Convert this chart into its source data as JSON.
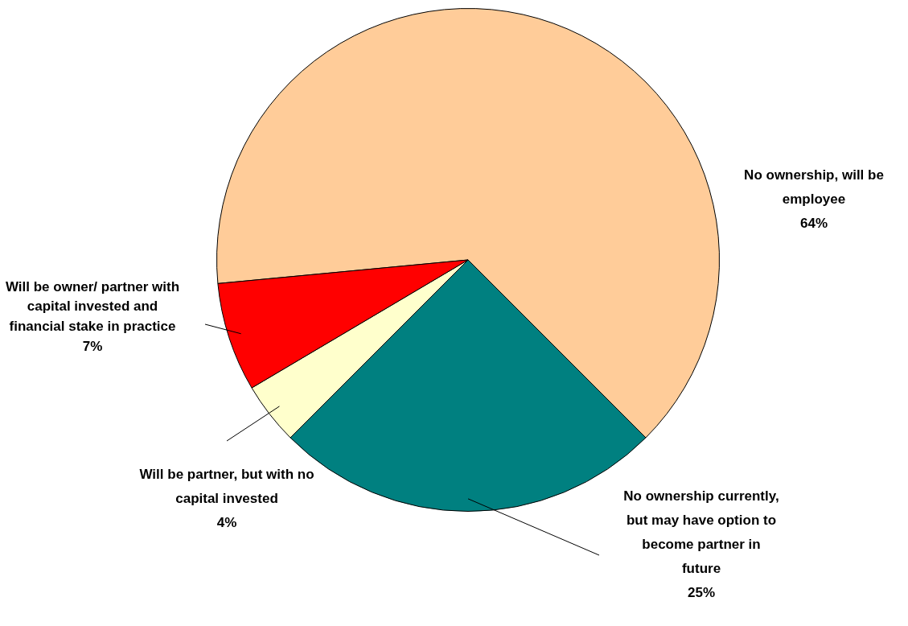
{
  "chart_data": {
    "type": "pie",
    "categories": [
      "No ownership, will be employee",
      "No ownership currently, but may have option to become partner in future",
      "Will be partner, but with no capital invested",
      "Will be owner/ partner with capital invested and financial stake in practice"
    ],
    "values": [
      64,
      25,
      4,
      7
    ],
    "colors": [
      "#ffcc99",
      "#008080",
      "#ffffcc",
      "#ff0000"
    ],
    "value_labels": [
      "64%",
      "25%",
      "4%",
      "7%"
    ],
    "legend": false
  }
}
